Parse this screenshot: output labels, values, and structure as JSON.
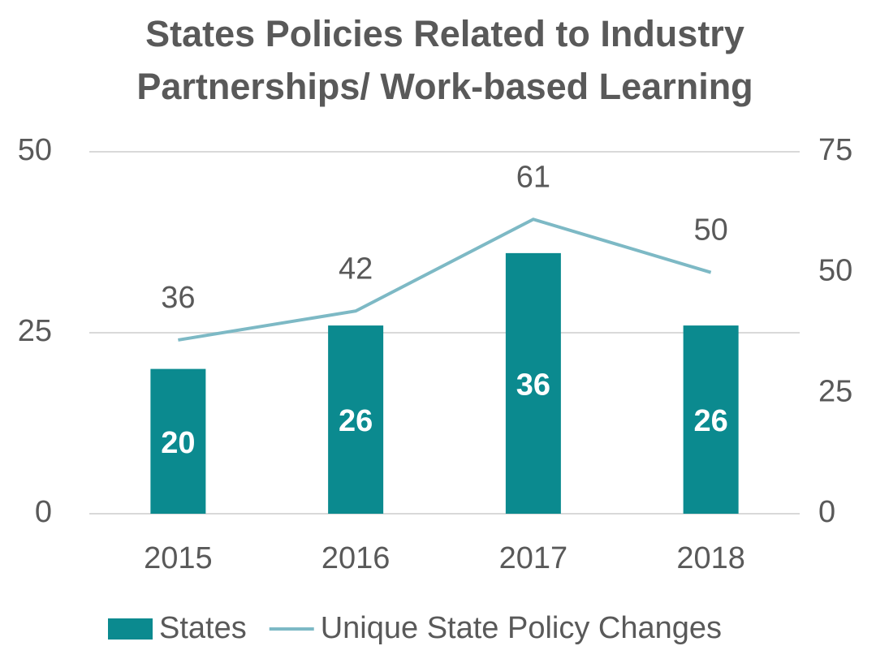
{
  "chart_data": {
    "type": "bar",
    "title": [
      "States Policies Related to Industry",
      "Partnerships/ Work-based Learning"
    ],
    "categories": [
      "2015",
      "2016",
      "2017",
      "2018"
    ],
    "series": [
      {
        "name": "States",
        "type": "bar",
        "color": "#0b8a8f",
        "values": [
          20,
          26,
          36,
          26
        ]
      },
      {
        "name": "Unique State Policy Changes",
        "type": "line",
        "axis": "y2",
        "color": "#7db9c5",
        "values": [
          36,
          42,
          61,
          50
        ]
      }
    ],
    "ylim": [
      0,
      50
    ],
    "yticks": [
      0,
      25,
      50
    ],
    "y2lim": [
      0,
      75
    ],
    "y2ticks": [
      0,
      25,
      50,
      75
    ],
    "grid": true,
    "legend": "bottom"
  }
}
